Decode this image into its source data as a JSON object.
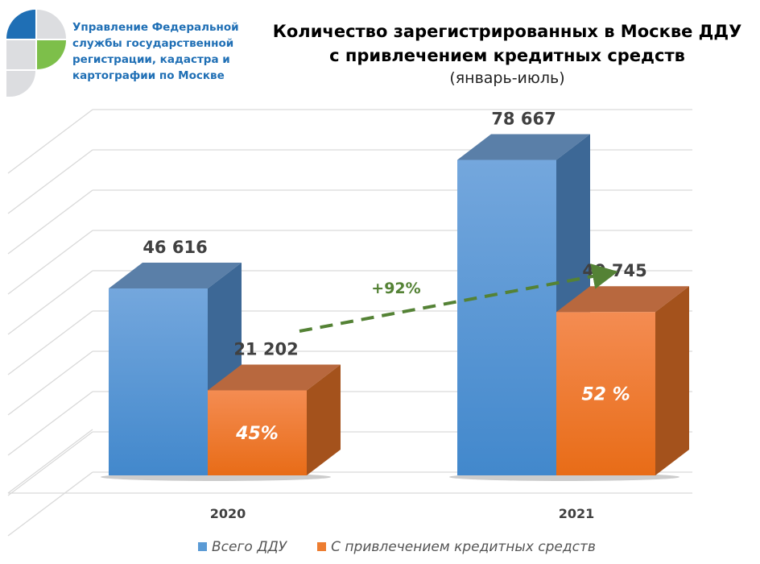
{
  "header": {
    "organization": "Управление Федеральной службы государственной регистрации, кадастра и картографии по Москве",
    "organization_lines": [
      "Управление Федеральной",
      "службы государственной",
      "регистрации, кадастра и",
      "картографии по Москве"
    ],
    "logo_colors": {
      "blue": "#1f6fb5",
      "green": "#7dbf4a",
      "gray": "#dcdde0"
    }
  },
  "chart_data": {
    "type": "bar",
    "title_lines": [
      "Количество зарегистрированных в Москве ДДУ",
      "с привлечением кредитных средств"
    ],
    "subtitle": "(январь-июль)",
    "categories": [
      "2020",
      "2021"
    ],
    "series": [
      {
        "name": "Всего ДДУ",
        "values": [
          46616,
          78667
        ],
        "labels": [
          "46 616",
          "78 667"
        ],
        "color": "#5b9bd5"
      },
      {
        "name": "С привлечением кредитных средств",
        "values": [
          21202,
          40745
        ],
        "labels": [
          "21 202",
          "40 745"
        ],
        "share_labels": [
          "45%",
          "52 %"
        ],
        "color": "#ed7d31"
      }
    ],
    "annotation": {
      "text": "+92%",
      "color": "#548235"
    },
    "ylim": [
      0,
      100000
    ],
    "grid": true,
    "style": "3d",
    "legend": "bottom"
  }
}
